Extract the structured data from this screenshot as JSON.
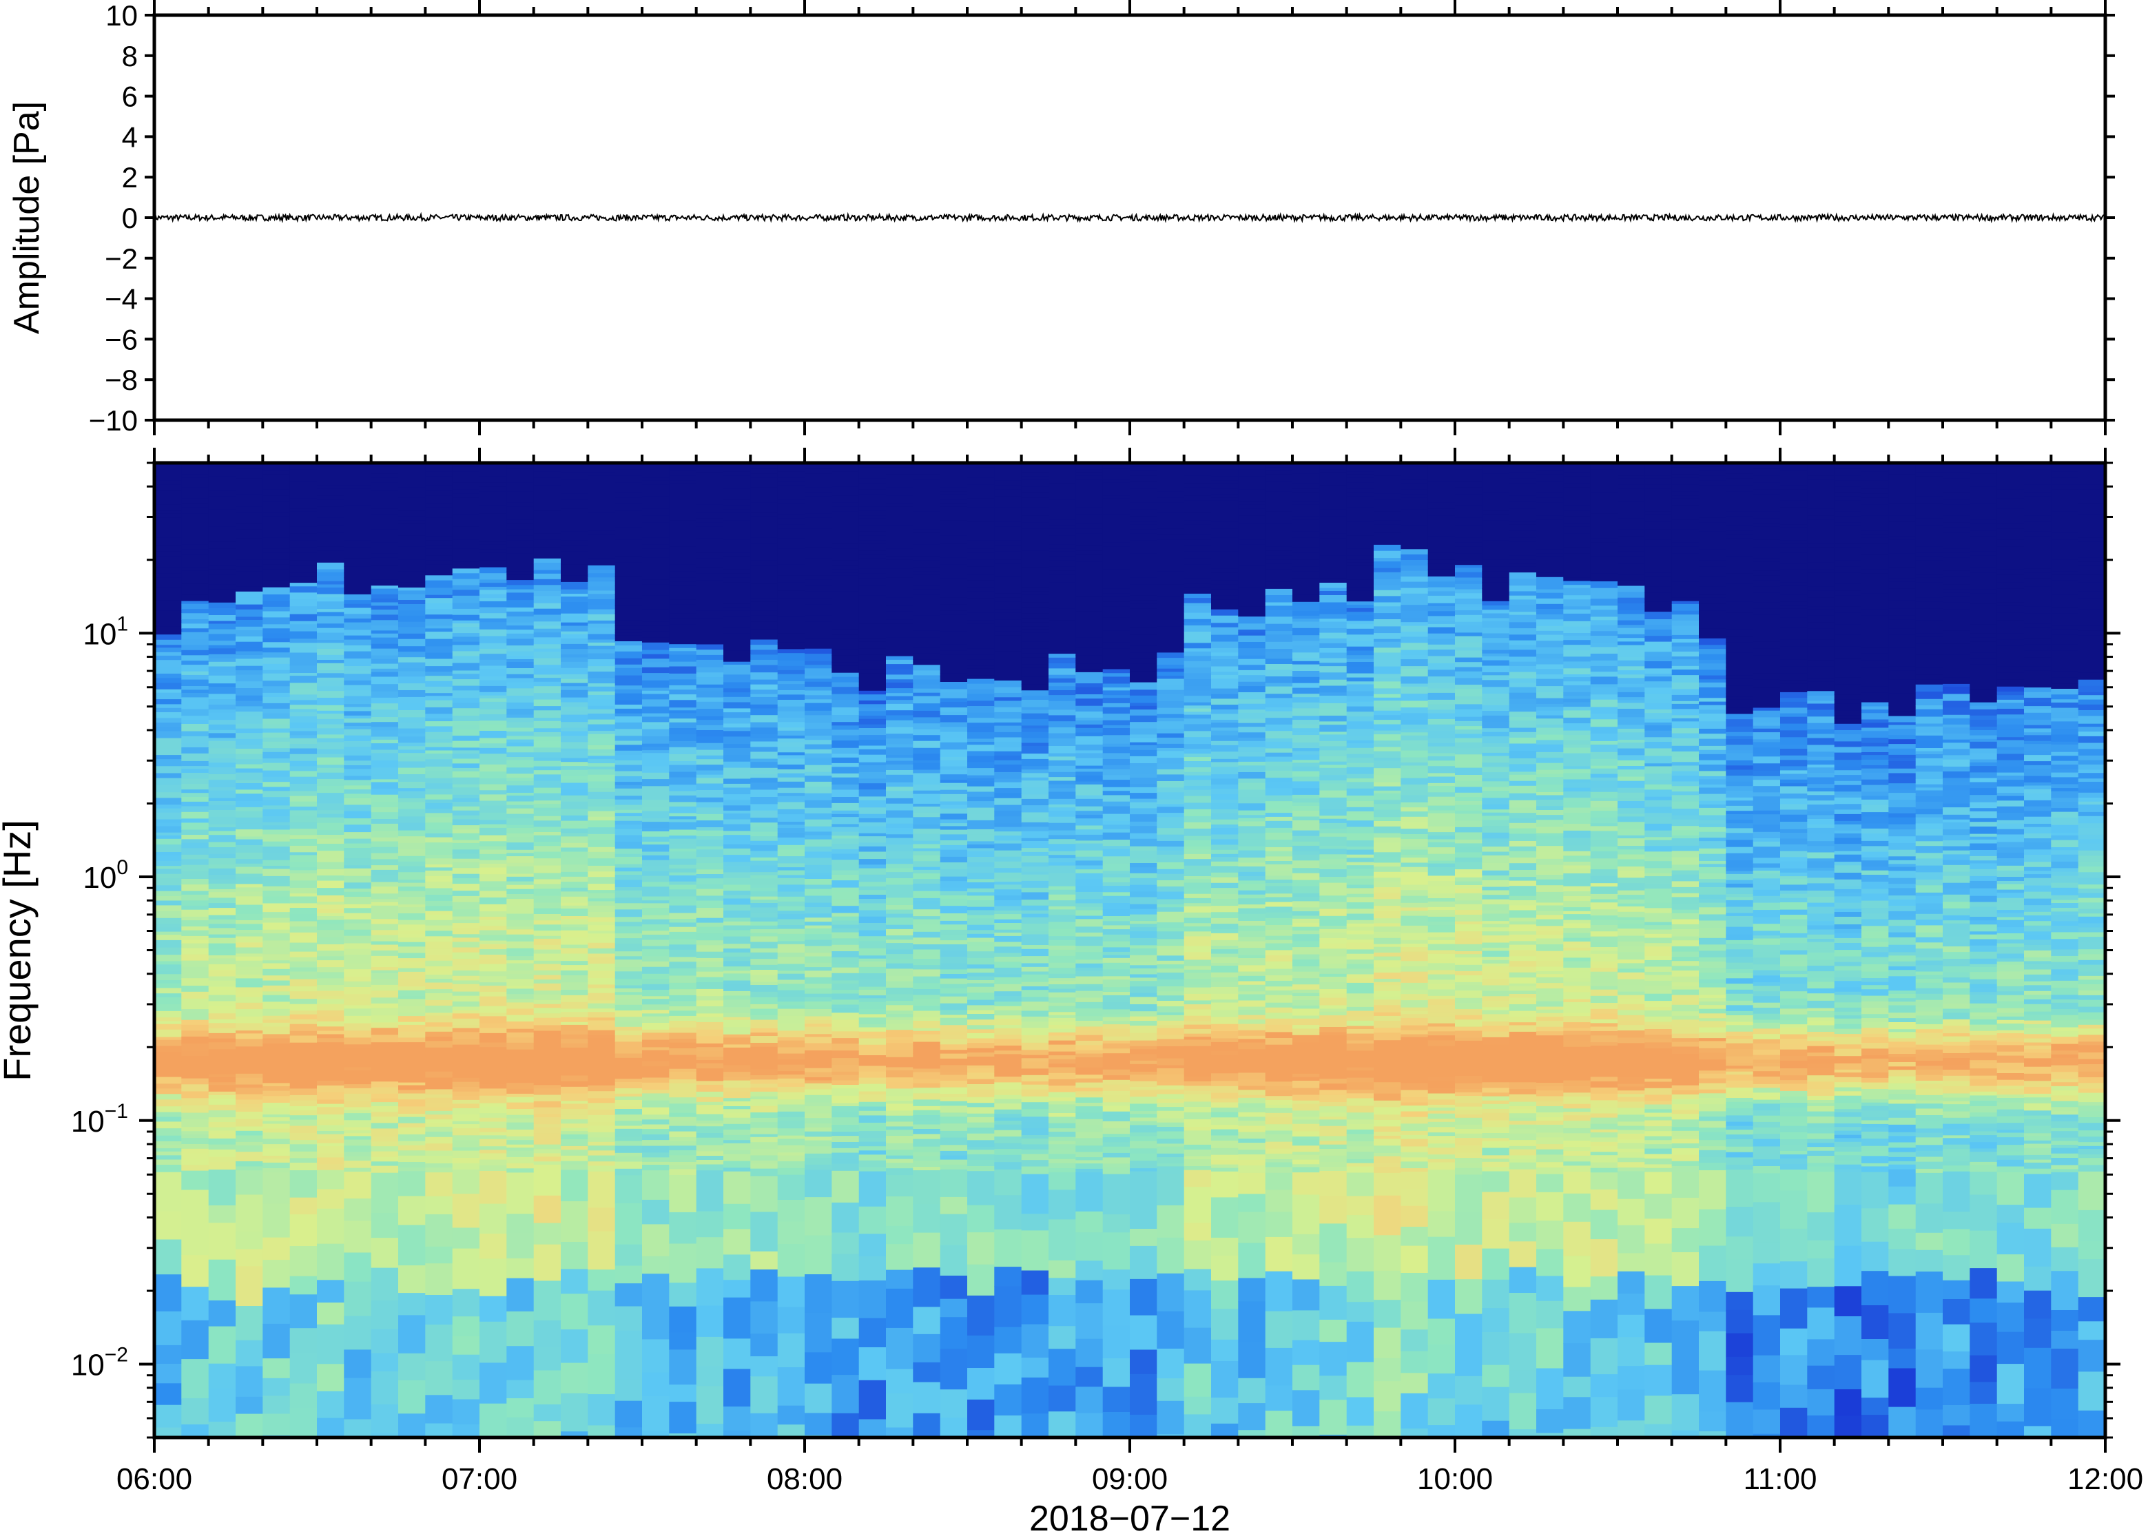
{
  "chart_data": [
    {
      "type": "line",
      "panel": "waveform",
      "ylabel": "Amplitude [Pa]",
      "ylim": [
        -10,
        10
      ],
      "yticks": [
        10,
        8,
        6,
        4,
        2,
        0,
        -2,
        -4,
        -6,
        -8,
        -10
      ],
      "ytick_labels": [
        "10",
        "8",
        "6",
        "4",
        "2",
        "0",
        "−2",
        "−4",
        "−6",
        "−8",
        "−10"
      ],
      "x_range": [
        "06:00",
        "12:00"
      ],
      "series": [
        {
          "values_note": "near-zero noise trace",
          "amplitude_envelope": [
            -0.15,
            0.15
          ],
          "color": "#000000"
        }
      ]
    },
    {
      "type": "heatmap",
      "panel": "spectrogram",
      "ylabel": "Frequency [Hz]",
      "yscale": "log",
      "ylim": [
        0.005,
        50
      ],
      "yticks": [
        {
          "base": "10",
          "exp": "1",
          "value": 10
        },
        {
          "base": "10",
          "exp": "0",
          "value": 1
        },
        {
          "base": "10",
          "exp": "−1",
          "value": 0.1
        },
        {
          "base": "10",
          "exp": "−2",
          "value": 0.01
        }
      ],
      "xlabel": "2018−07−12",
      "xticks": [
        "06:00",
        "07:00",
        "08:00",
        "09:00",
        "10:00",
        "11:00",
        "12:00"
      ],
      "colormap": [
        "#0b0a78",
        "#1a3ad6",
        "#2c8cf0",
        "#5cc8f4",
        "#8ee6c0",
        "#d8f08e",
        "#f5d07a",
        "#f4a25e"
      ],
      "dominant_band_hz": 0.18,
      "n_time_columns": 72
    }
  ]
}
